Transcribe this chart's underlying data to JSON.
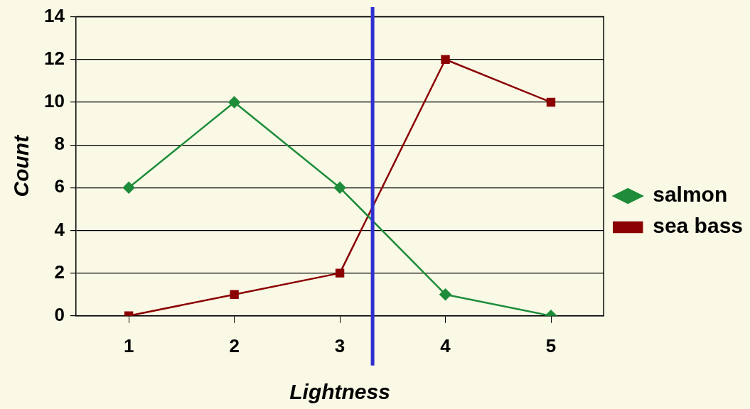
{
  "chart_data": {
    "type": "line",
    "xlabel": "Lightness",
    "ylabel": "Count",
    "x": [
      1,
      2,
      3,
      4,
      5
    ],
    "xlim": [
      0.5,
      5.5
    ],
    "xticks": [
      1,
      2,
      3,
      4,
      5
    ],
    "ylim": [
      0,
      14
    ],
    "yticks": [
      0,
      2,
      4,
      6,
      8,
      10,
      12,
      14
    ],
    "series": [
      {
        "name": "salmon",
        "color": "#1e8c3a",
        "values": [
          6,
          10,
          6,
          1,
          0
        ],
        "marker": "diamond"
      },
      {
        "name": "sea bass",
        "color": "#8b0000",
        "values": [
          0,
          1,
          2,
          12,
          10
        ],
        "marker": "square"
      }
    ],
    "ref_lines": [
      {
        "axis": "x",
        "value": 3.31,
        "color": "#3030d0"
      }
    ],
    "grid": "y",
    "legend": "right",
    "line_style": "solid"
  }
}
